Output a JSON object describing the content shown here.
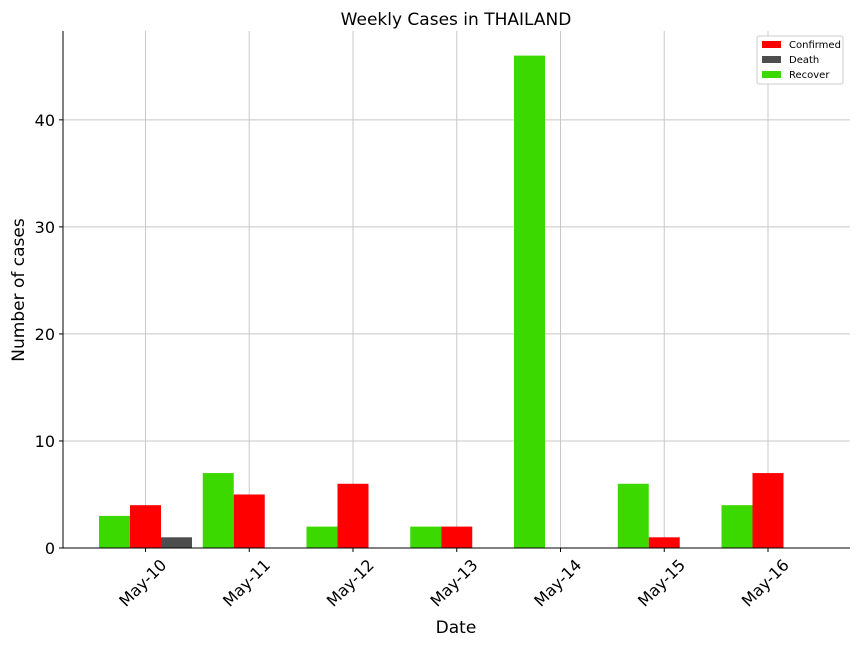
{
  "chart_data": {
    "type": "bar",
    "title": "Weekly Cases in THAILAND",
    "xlabel": "Date",
    "ylabel": "Number of cases",
    "categories": [
      "May-10",
      "May-11",
      "May-12",
      "May-13",
      "May-14",
      "May-15",
      "May-16"
    ],
    "series": [
      {
        "name": "Recover",
        "color": "#3cd900",
        "values": [
          3,
          7,
          2,
          2,
          46,
          6,
          4
        ]
      },
      {
        "name": "Confirmed",
        "color": "#ff0000",
        "values": [
          4,
          5,
          6,
          2,
          0,
          1,
          7
        ]
      },
      {
        "name": "Death",
        "color": "#4d4d4d",
        "values": [
          1,
          0,
          0,
          0,
          0,
          0,
          0
        ]
      }
    ],
    "legend": [
      {
        "name": "Confirmed",
        "color": "#ff0000"
      },
      {
        "name": "Death",
        "color": "#4d4d4d"
      },
      {
        "name": "Recover",
        "color": "#3cd900"
      }
    ],
    "legend_position": "top-right",
    "ylim": [
      0,
      48.3
    ],
    "yticks": [
      0,
      10,
      20,
      30,
      40
    ],
    "grid": true
  }
}
